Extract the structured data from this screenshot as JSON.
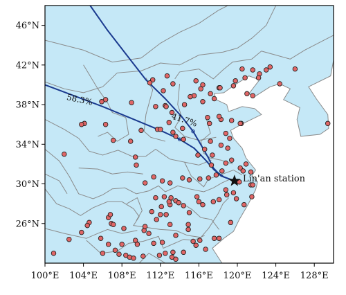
{
  "map": {
    "lon_range": [
      100,
      130
    ],
    "lat_range": [
      22,
      48
    ],
    "colors": {
      "water": "#c5e8f7",
      "land": "#ffffff",
      "border": "#8a8a8a",
      "trajectory": "#1a3a8f",
      "site_fill": "#e06666",
      "site_stroke": "#222222",
      "frame": "#000000"
    },
    "x_ticks": [
      {
        "value": 100,
        "label": "100°E"
      },
      {
        "value": 104,
        "label": "104°E"
      },
      {
        "value": 108,
        "label": "108°E"
      },
      {
        "value": 112,
        "label": "112°E"
      },
      {
        "value": 116,
        "label": "116°E"
      },
      {
        "value": 120,
        "label": "120°E"
      },
      {
        "value": 124,
        "label": "124°E"
      },
      {
        "value": 128,
        "label": "128°E"
      }
    ],
    "y_ticks": [
      {
        "value": 26,
        "label": "26°N"
      },
      {
        "value": 30,
        "label": "30°N"
      },
      {
        "value": 34,
        "label": "34°N"
      },
      {
        "value": 38,
        "label": "38°N"
      },
      {
        "value": 42,
        "label": "42°N"
      },
      {
        "value": 46,
        "label": "46°N"
      }
    ],
    "station": {
      "name": "Lin'an station",
      "lon": 119.7,
      "lat": 30.3
    },
    "trajectories": [
      {
        "pct_label": "58.3%",
        "label_at": [
          102.2,
          38.5
        ],
        "points": [
          [
            100,
            40
          ],
          [
            103,
            38.9
          ],
          [
            106,
            37.8
          ],
          [
            109,
            36.6
          ],
          [
            112,
            35.4
          ],
          [
            114,
            34.5
          ],
          [
            115.5,
            33.6
          ],
          [
            116.7,
            32.4
          ],
          [
            117.6,
            31.4
          ],
          [
            118.6,
            30.7
          ],
          [
            119.7,
            30.3
          ]
        ]
      },
      {
        "pct_label": "41.7%",
        "label_at": [
          113.1,
          36.6
        ],
        "points": [
          [
            104.7,
            48
          ],
          [
            106.5,
            45.5
          ],
          [
            108.5,
            43.0
          ],
          [
            110.5,
            40.5
          ],
          [
            112.5,
            38.6
          ],
          [
            114.2,
            36.8
          ],
          [
            115.4,
            35.3
          ],
          [
            116.3,
            33.8
          ],
          [
            117,
            32.6
          ],
          [
            117.5,
            31.6
          ],
          [
            118.3,
            30.8
          ],
          [
            119.7,
            30.3
          ]
        ]
      }
    ],
    "sites": [
      [
        111.2,
        40.5
      ],
      [
        110.9,
        40.2
      ],
      [
        112.7,
        40.9
      ],
      [
        115.7,
        40.4
      ],
      [
        116.4,
        40.0
      ],
      [
        116.2,
        39.6
      ],
      [
        117.2,
        39.1
      ],
      [
        118.1,
        39.7
      ],
      [
        114.5,
        38.0
      ],
      [
        115.5,
        38.9
      ],
      [
        115.1,
        38.8
      ],
      [
        116.4,
        38.3
      ],
      [
        117.6,
        38.6
      ],
      [
        119.6,
        39.9
      ],
      [
        120.5,
        41.6
      ],
      [
        121.6,
        38.9
      ],
      [
        122.3,
        41.1
      ],
      [
        123.4,
        41.8
      ],
      [
        123.0,
        41.5
      ],
      [
        121.6,
        41.5
      ],
      [
        122.2,
        40.7
      ],
      [
        124.4,
        40.1
      ],
      [
        126.0,
        41.6
      ],
      [
        118.2,
        39.7
      ],
      [
        119.8,
        40.4
      ],
      [
        120.8,
        40.7
      ],
      [
        106.3,
        38.5
      ],
      [
        105.9,
        38.3
      ],
      [
        109.0,
        38.2
      ],
      [
        111.5,
        37.8
      ],
      [
        112.5,
        37.9
      ],
      [
        112.6,
        37.8
      ],
      [
        112.3,
        39.4
      ],
      [
        113.3,
        40.1
      ],
      [
        113.2,
        37.2
      ],
      [
        112.9,
        36.2
      ],
      [
        110.0,
        35.4
      ],
      [
        111.7,
        35.5
      ],
      [
        112.0,
        35.5
      ],
      [
        113.6,
        34.8
      ],
      [
        114.4,
        34.5
      ],
      [
        113.3,
        35.2
      ],
      [
        114.3,
        35.6
      ],
      [
        116.9,
        36.7
      ],
      [
        117.1,
        36.1
      ],
      [
        118.3,
        36.5
      ],
      [
        120.4,
        36.1
      ],
      [
        118.8,
        35.1
      ],
      [
        117.2,
        34.3
      ],
      [
        119.2,
        34.6
      ],
      [
        119.0,
        33.6
      ],
      [
        118.3,
        33.9
      ],
      [
        117.4,
        32.9
      ],
      [
        117.3,
        31.9
      ],
      [
        118.8,
        32.1
      ],
      [
        119.4,
        32.4
      ],
      [
        120.3,
        31.6
      ],
      [
        120.6,
        31.3
      ],
      [
        121.4,
        31.2
      ],
      [
        120.9,
        32.0
      ],
      [
        118.4,
        31.3
      ],
      [
        117.0,
        30.6
      ],
      [
        117.8,
        30.9
      ],
      [
        116.1,
        30.5
      ],
      [
        115.0,
        30.4
      ],
      [
        114.3,
        30.6
      ],
      [
        113.0,
        30.1
      ],
      [
        112.2,
        30.3
      ],
      [
        111.3,
        30.7
      ],
      [
        110.4,
        30.1
      ],
      [
        109.5,
        31.9
      ],
      [
        108.9,
        34.3
      ],
      [
        107.1,
        34.4
      ],
      [
        109.4,
        32.7
      ],
      [
        106.3,
        36.0
      ],
      [
        104.1,
        36.1
      ],
      [
        103.8,
        36.0
      ],
      [
        102.0,
        33.0
      ],
      [
        102.5,
        24.4
      ],
      [
        100.9,
        23.0
      ],
      [
        103.8,
        25.1
      ],
      [
        104.6,
        26.1
      ],
      [
        104.4,
        25.8
      ],
      [
        106.6,
        26.6
      ],
      [
        106.8,
        26.9
      ],
      [
        106.9,
        26.0
      ],
      [
        107.1,
        25.9
      ],
      [
        108.2,
        25.5
      ],
      [
        108.0,
        23.9
      ],
      [
        108.4,
        22.8
      ],
      [
        108.8,
        22.6
      ],
      [
        109.4,
        24.3
      ],
      [
        110.3,
        25.3
      ],
      [
        110.4,
        25.7
      ],
      [
        111.6,
        26.4
      ],
      [
        111.1,
        27.2
      ],
      [
        112.0,
        26.9
      ],
      [
        112.6,
        26.9
      ],
      [
        113.0,
        27.9
      ],
      [
        112.9,
        28.2
      ],
      [
        113.1,
        28.6
      ],
      [
        112.1,
        27.7
      ],
      [
        111.5,
        28.6
      ],
      [
        112.4,
        28.7
      ],
      [
        113.6,
        28.3
      ],
      [
        113.9,
        28.1
      ],
      [
        114.4,
        27.8
      ],
      [
        115.8,
        28.7
      ],
      [
        116.0,
        28.2
      ],
      [
        115.0,
        27.1
      ],
      [
        114.9,
        25.9
      ],
      [
        116.4,
        27.9
      ],
      [
        117.5,
        28.2
      ],
      [
        118.1,
        28.4
      ],
      [
        118.9,
        28.9
      ],
      [
        118.8,
        29.4
      ],
      [
        119.6,
        29.1
      ],
      [
        120.2,
        30.2
      ],
      [
        119.9,
        28.5
      ],
      [
        120.7,
        27.9
      ],
      [
        121.4,
        29.9
      ],
      [
        121.6,
        29.9
      ],
      [
        121.5,
        28.7
      ],
      [
        119.3,
        26.1
      ],
      [
        118.1,
        24.5
      ],
      [
        117.6,
        24.5
      ],
      [
        116.7,
        23.4
      ],
      [
        115.4,
        24.2
      ],
      [
        114.9,
        25.4
      ],
      [
        114.4,
        23.1
      ],
      [
        113.3,
        23.1
      ],
      [
        113.2,
        22.6
      ],
      [
        113.6,
        22.4
      ],
      [
        112.2,
        24.1
      ],
      [
        111.3,
        24.0
      ],
      [
        110.2,
        22.7
      ],
      [
        109.6,
        23.9
      ],
      [
        110.8,
        25.0
      ],
      [
        113.0,
        25.9
      ],
      [
        113.6,
        24.8
      ],
      [
        115.7,
        23.8
      ],
      [
        116.1,
        24.3
      ],
      [
        112.5,
        23.0
      ],
      [
        111.9,
        22.8
      ],
      [
        109.2,
        22.5
      ],
      [
        107.7,
        22.9
      ],
      [
        107.3,
        23.3
      ],
      [
        106.6,
        23.9
      ],
      [
        105.8,
        24.5
      ],
      [
        106.0,
        23.0
      ],
      [
        120.3,
        36.1
      ],
      [
        129.4,
        36.1
      ],
      [
        121.0,
        39.1
      ],
      [
        119.4,
        36.4
      ],
      [
        118.1,
        36.8
      ],
      [
        116.6,
        33.5
      ],
      [
        115.9,
        32.9
      ]
    ]
  }
}
